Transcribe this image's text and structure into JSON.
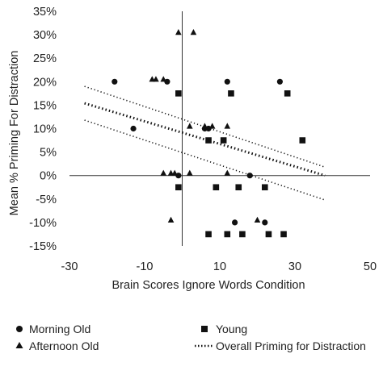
{
  "chart_data": {
    "type": "scatter",
    "title": "",
    "xlabel": "Brain Scores Ignore Words Condition",
    "ylabel": "Mean % Priming For Distraction",
    "xlim": [
      -30,
      50
    ],
    "ylim": [
      -15,
      35
    ],
    "xticks": [
      -30,
      -10,
      10,
      30,
      50
    ],
    "yticks": [
      -15,
      -10,
      -5,
      0,
      5,
      10,
      15,
      20,
      25,
      30,
      35
    ],
    "xtick_labels": [
      "-30",
      "-10",
      "10",
      "30",
      "50"
    ],
    "ytick_labels": [
      "-15%",
      "-10%",
      "-5%",
      "0%",
      "5%",
      "10%",
      "15%",
      "20%",
      "25%",
      "30%",
      "35%"
    ],
    "grid": false,
    "legend_position": "bottom",
    "series": [
      {
        "name": "Morning Old",
        "marker": "circle",
        "color": "#111111",
        "points": [
          [
            -18,
            20
          ],
          [
            -4,
            20
          ],
          [
            12,
            20
          ],
          [
            26,
            20
          ],
          [
            -13,
            10
          ],
          [
            6,
            10
          ],
          [
            7,
            10
          ],
          [
            -1,
            0
          ],
          [
            18,
            0
          ],
          [
            14,
            -10
          ],
          [
            22,
            -10
          ]
        ]
      },
      {
        "name": "Young",
        "marker": "square",
        "color": "#111111",
        "points": [
          [
            -1,
            17.5
          ],
          [
            13,
            17.5
          ],
          [
            28,
            17.5
          ],
          [
            7,
            7.5
          ],
          [
            11,
            7.5
          ],
          [
            32,
            7.5
          ],
          [
            -1,
            -2.5
          ],
          [
            9,
            -2.5
          ],
          [
            15,
            -2.5
          ],
          [
            22,
            -2.5
          ],
          [
            7,
            -12.5
          ],
          [
            12,
            -12.5
          ],
          [
            16,
            -12.5
          ],
          [
            23,
            -12.5
          ],
          [
            27,
            -12.5
          ]
        ]
      },
      {
        "name": "Afternoon Old",
        "marker": "triangle",
        "color": "#111111",
        "points": [
          [
            -1,
            30.5
          ],
          [
            3,
            30.5
          ],
          [
            -8,
            20.5
          ],
          [
            -7,
            20.5
          ],
          [
            -5,
            20.5
          ],
          [
            2,
            10.5
          ],
          [
            6,
            10.5
          ],
          [
            8,
            10.5
          ],
          [
            12,
            10.5
          ],
          [
            -5,
            0.5
          ],
          [
            -3,
            0.5
          ],
          [
            -2,
            0.5
          ],
          [
            2,
            0.5
          ],
          [
            12,
            0.5
          ],
          [
            -3,
            -9.5
          ],
          [
            20,
            -9.5
          ]
        ]
      }
    ],
    "fit": {
      "name": "Overall Priming for Distraction",
      "style": "dotted",
      "x": [
        -26,
        38
      ],
      "y": [
        15.4,
        0
      ],
      "ci_upper": [
        19.0,
        1.8
      ],
      "ci_lower": [
        11.8,
        -5.2
      ]
    },
    "reference_lines": {
      "x": 0,
      "y": 0
    }
  }
}
